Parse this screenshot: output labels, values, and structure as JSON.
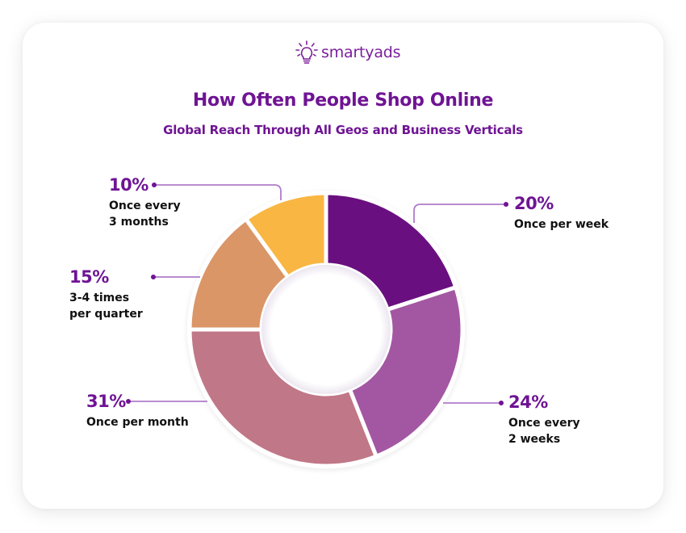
{
  "brand": {
    "name": "smartyads",
    "icon": "lightbulb-icon",
    "color": "#7b1f9b"
  },
  "header": {
    "title": "How Often People Shop Online",
    "subtitle": "Global Reach Through All Geos and Business Verticals"
  },
  "colors": {
    "title": "#6f1494",
    "leader_line": "#b07cc9",
    "leader_dot": "#6f1494",
    "text": "#111111"
  },
  "chart_data": {
    "type": "pie",
    "variant": "donut",
    "title": "How Often People Shop Online",
    "subtitle": "Global Reach Through All Geos and Business Verticals",
    "categories": [
      "Once per week",
      "Once every 2 weeks",
      "Once per month",
      "3-4 times per quarter",
      "Once every 3 months"
    ],
    "values": [
      20,
      24,
      31,
      15,
      10
    ],
    "unit": "%",
    "colors": [
      "#6a0f80",
      "#a357a3",
      "#c07787",
      "#da9667",
      "#f9b642"
    ],
    "start_angle_deg": 0,
    "direction": "clockwise",
    "legend": "callout labels with leader lines"
  },
  "labels": [
    {
      "pct": "20%",
      "desc": "Once per week"
    },
    {
      "pct": "24%",
      "desc": "Once every\n2 weeks"
    },
    {
      "pct": "31%",
      "desc": "Once per month"
    },
    {
      "pct": "15%",
      "desc": "3-4 times\nper quarter"
    },
    {
      "pct": "10%",
      "desc": "Once every\n3 months"
    }
  ]
}
